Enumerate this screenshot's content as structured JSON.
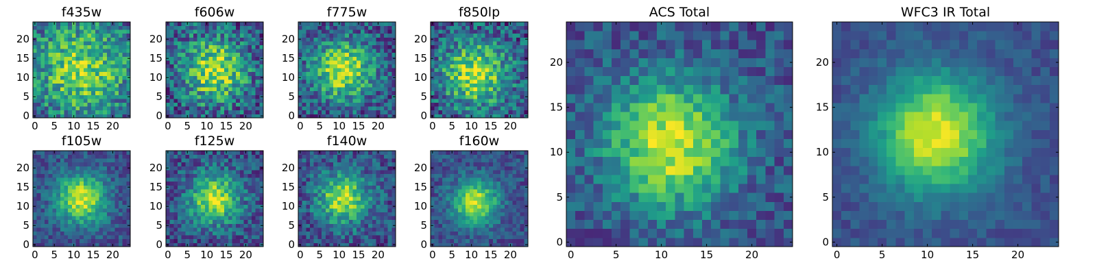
{
  "chart_data": [
    {
      "type": "heatmap",
      "title": "f435w",
      "xlim": [
        0,
        24
      ],
      "ylim": [
        0,
        24
      ],
      "xticks": [
        0,
        5,
        10,
        15,
        20
      ],
      "yticks": [
        0,
        5,
        10,
        15,
        20
      ],
      "center": [
        12,
        12
      ],
      "spread": 9,
      "peak": 0.78,
      "noise": 0.26,
      "seed": 11
    },
    {
      "type": "heatmap",
      "title": "f606w",
      "xlim": [
        0,
        24
      ],
      "ylim": [
        0,
        24
      ],
      "xticks": [
        0,
        5,
        10,
        15,
        20
      ],
      "yticks": [
        0,
        5,
        10,
        15,
        20
      ],
      "center": [
        12,
        12
      ],
      "spread": 6,
      "peak": 0.88,
      "noise": 0.28,
      "seed": 23
    },
    {
      "type": "heatmap",
      "title": "f775w",
      "xlim": [
        0,
        24
      ],
      "ylim": [
        0,
        24
      ],
      "xticks": [
        0,
        5,
        10,
        15,
        20
      ],
      "yticks": [
        0,
        5,
        10,
        15,
        20
      ],
      "center": [
        11,
        12
      ],
      "spread": 5.5,
      "peak": 0.9,
      "noise": 0.24,
      "seed": 37
    },
    {
      "type": "heatmap",
      "title": "f850lp",
      "xlim": [
        0,
        24
      ],
      "ylim": [
        0,
        24
      ],
      "xticks": [
        0,
        5,
        10,
        15,
        20
      ],
      "yticks": [
        0,
        5,
        10,
        15,
        20
      ],
      "center": [
        11,
        11
      ],
      "spread": 6,
      "peak": 0.88,
      "noise": 0.26,
      "seed": 41
    },
    {
      "type": "heatmap",
      "title": "f105w",
      "xlim": [
        0,
        24
      ],
      "ylim": [
        0,
        24
      ],
      "xticks": [
        0,
        5,
        10,
        15,
        20
      ],
      "yticks": [
        0,
        5,
        10,
        15,
        20
      ],
      "center": [
        12,
        12
      ],
      "spread": 4.5,
      "peak": 0.95,
      "noise": 0.15,
      "seed": 53
    },
    {
      "type": "heatmap",
      "title": "f125w",
      "xlim": [
        0,
        24
      ],
      "ylim": [
        0,
        24
      ],
      "xticks": [
        0,
        5,
        10,
        15,
        20
      ],
      "yticks": [
        0,
        5,
        10,
        15,
        20
      ],
      "center": [
        12,
        12
      ],
      "spread": 4.5,
      "peak": 0.92,
      "noise": 0.2,
      "seed": 67
    },
    {
      "type": "heatmap",
      "title": "f140w",
      "xlim": [
        0,
        24
      ],
      "ylim": [
        0,
        24
      ],
      "xticks": [
        0,
        5,
        10,
        15,
        20
      ],
      "yticks": [
        0,
        5,
        10,
        15,
        20
      ],
      "center": [
        11,
        12
      ],
      "spread": 4.5,
      "peak": 0.9,
      "noise": 0.2,
      "seed": 79
    },
    {
      "type": "heatmap",
      "title": "f160w",
      "xlim": [
        0,
        24
      ],
      "ylim": [
        0,
        24
      ],
      "xticks": [
        0,
        5,
        10,
        15,
        20
      ],
      "yticks": [
        0,
        5,
        10,
        15,
        20
      ],
      "center": [
        11,
        11
      ],
      "spread": 4,
      "peak": 0.95,
      "noise": 0.14,
      "seed": 83
    },
    {
      "type": "heatmap",
      "title": "ACS Total",
      "xlim": [
        0,
        24
      ],
      "ylim": [
        0,
        24
      ],
      "xticks": [
        0,
        5,
        10,
        15,
        20
      ],
      "yticks": [
        0,
        5,
        10,
        15,
        20
      ],
      "center": [
        11,
        11
      ],
      "spread": 5,
      "peak": 0.95,
      "noise": 0.16,
      "seed": 97
    },
    {
      "type": "heatmap",
      "title": "WFC3 IR Total",
      "xlim": [
        0,
        24
      ],
      "ylim": [
        0,
        24
      ],
      "xticks": [
        0,
        5,
        10,
        15,
        20
      ],
      "yticks": [
        0,
        5,
        10,
        15,
        20
      ],
      "center": [
        11,
        12
      ],
      "spread": 4.5,
      "peak": 1.0,
      "noise": 0.08,
      "seed": 101
    }
  ],
  "colors": {
    "colormap": [
      "#440154",
      "#482878",
      "#3e4989",
      "#31688e",
      "#26828e",
      "#1f9e89",
      "#35b779",
      "#6ece58",
      "#b5de2b",
      "#fde725"
    ],
    "axes": "#000000",
    "background": "#ffffff"
  }
}
